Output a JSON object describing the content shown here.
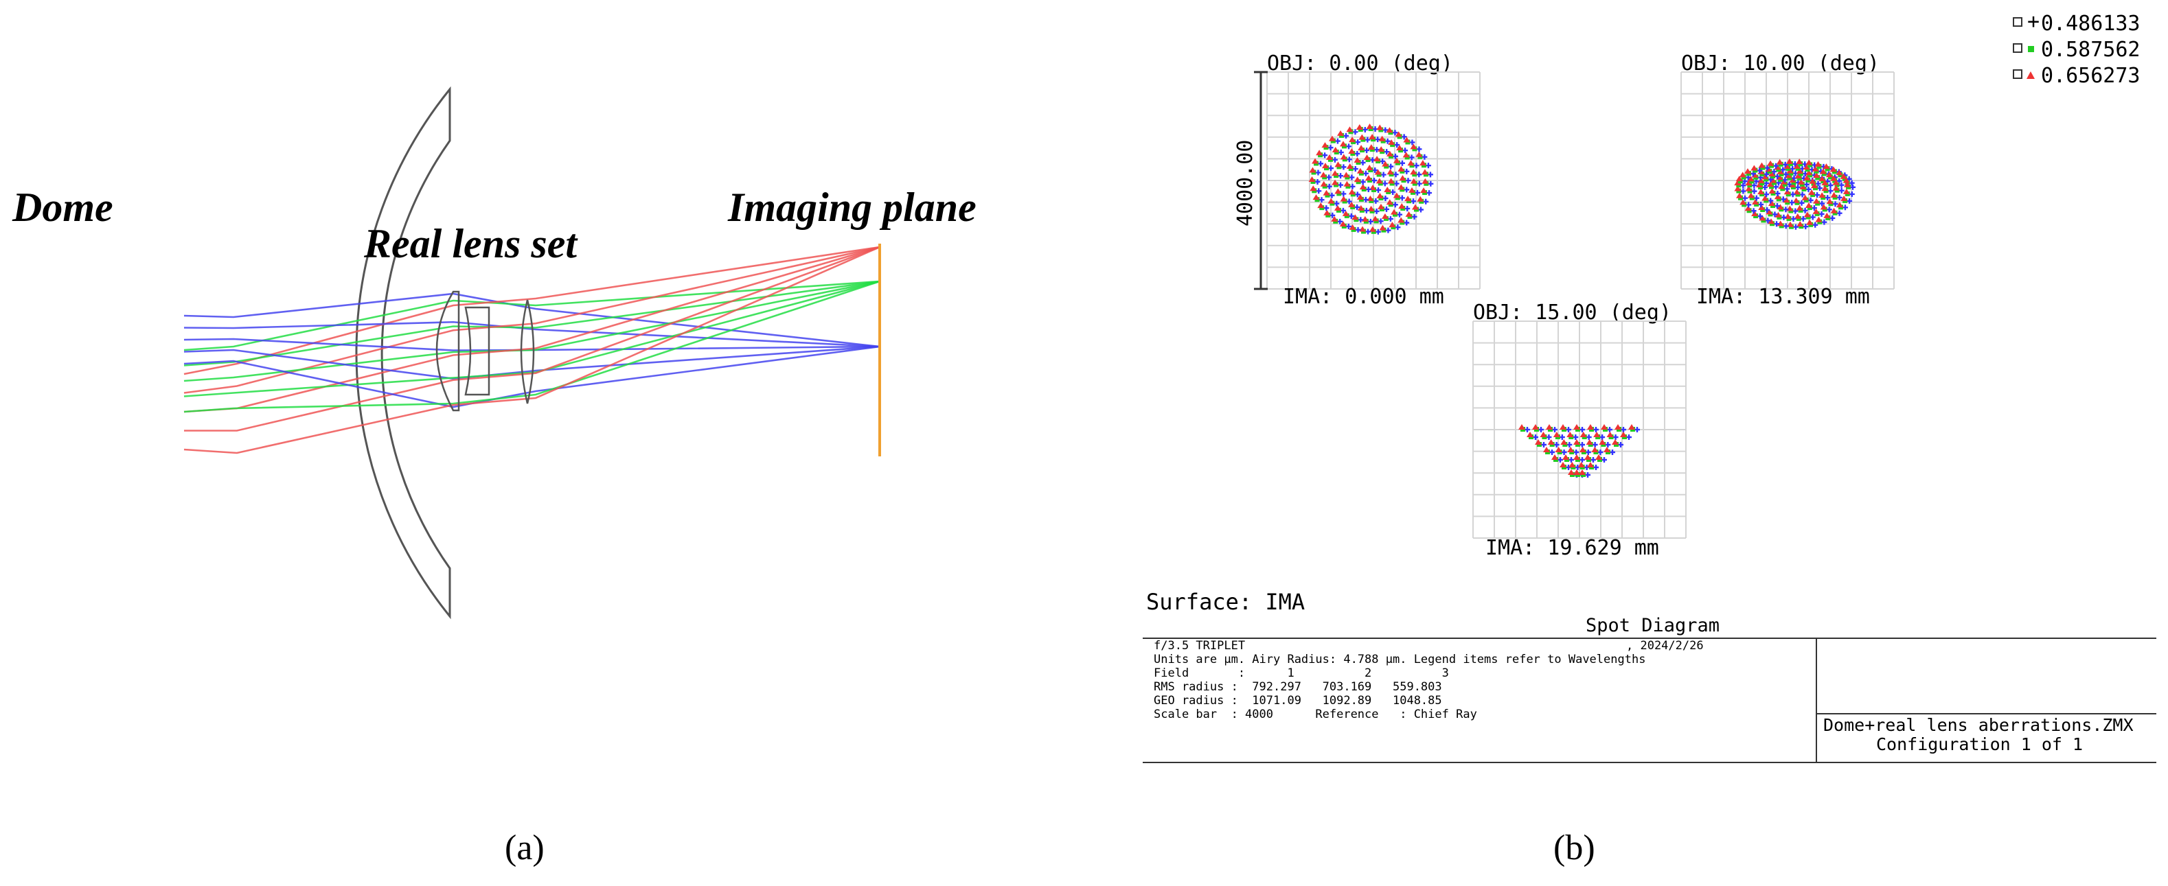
{
  "panel_a": {
    "label_dome": "Dome",
    "label_lens": "Real lens set",
    "label_image": "Imaging plane",
    "caption": "(a)",
    "colors": {
      "blue": "#4444ee",
      "green": "#22dd44",
      "red": "#ee5555",
      "plane": "#f0a030",
      "lens": "#555555"
    }
  },
  "panel_b": {
    "caption": "(b)",
    "legend": [
      {
        "value": "0.486133",
        "color": "#3333ff",
        "marker": "plus-icon"
      },
      {
        "value": "0.587562",
        "color": "#22cc22",
        "marker": "square-icon"
      },
      {
        "value": "0.656273",
        "color": "#ee3333",
        "marker": "triangle-icon"
      }
    ],
    "spots": [
      {
        "obj": "OBJ: 0.00 (deg)",
        "ima": "IMA: 0.000 mm"
      },
      {
        "obj": "OBJ: 10.00 (deg)",
        "ima": "IMA: 13.309 mm"
      },
      {
        "obj": "OBJ: 15.00 (deg)",
        "ima": "IMA: 19.629 mm"
      }
    ],
    "scale_label": "4000.00",
    "surface": "Surface: IMA",
    "title": "Spot Diagram",
    "info": {
      "name": "f/3.5 TRIPLET",
      "date": ", 2024/2/26",
      "units": "Units are µm. Airy Radius: 4.788 µm. Legend items refer to Wavelengths",
      "field": "Field       :      1          2          3",
      "rms": "RMS radius :  792.297   703.169   559.803",
      "geo": "GEO radius :  1071.09   1092.89   1048.85",
      "scale": "Scale bar  : 4000      Reference   : Chief Ray"
    },
    "file": "Dome+real lens aberrations.ZMX",
    "config": "Configuration 1 of 1"
  }
}
